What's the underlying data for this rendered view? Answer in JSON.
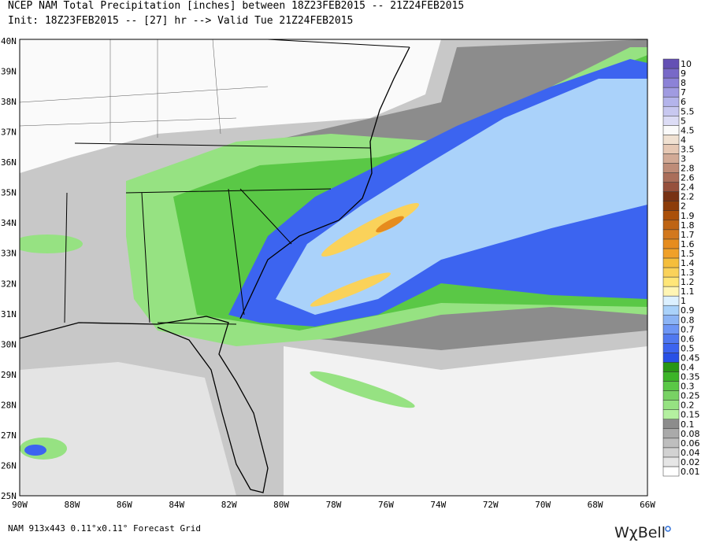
{
  "header": {
    "line1": "NCEP NAM Total Precipitation [inches] between 18Z23FEB2015 -- 21Z24FEB2015",
    "line2": "Init: 18Z23FEB2015 -- [27] hr --> Valid Tue 21Z24FEB2015"
  },
  "map": {
    "lat_labels": [
      "40N",
      "39N",
      "38N",
      "37N",
      "36N",
      "35N",
      "34N",
      "33N",
      "32N",
      "31N",
      "30N",
      "29N",
      "28N",
      "27N",
      "26N",
      "25N"
    ],
    "lon_labels": [
      "90W",
      "88W",
      "86W",
      "84W",
      "82W",
      "80W",
      "78W",
      "76W",
      "74W",
      "72W",
      "70W",
      "68W",
      "66W"
    ]
  },
  "colorbar": {
    "levels": [
      0.01,
      0.02,
      0.04,
      0.06,
      0.08,
      0.1,
      0.15,
      0.2,
      0.25,
      0.3,
      0.35,
      0.4,
      0.45,
      0.5,
      0.6,
      0.7,
      0.8,
      0.9,
      1,
      1.1,
      1.2,
      1.3,
      1.4,
      1.5,
      1.6,
      1.7,
      1.8,
      1.9,
      2,
      2.2,
      2.4,
      2.6,
      2.8,
      3,
      3.5,
      4,
      4.5,
      5,
      5.5,
      6,
      7,
      8,
      9,
      10
    ],
    "colors": [
      "#ffffff",
      "#e6e6e6",
      "#d2d2d2",
      "#bebebe",
      "#aaaaaa",
      "#8c8c8c",
      "#b4f0a0",
      "#96e282",
      "#78d264",
      "#5ac846",
      "#3cb428",
      "#289614",
      "#2850e6",
      "#3c64f0",
      "#5078f0",
      "#6e96f5",
      "#8cb4f5",
      "#aad2fa",
      "#dcf0ff",
      "#fff5b4",
      "#ffe678",
      "#fad25a",
      "#f5be3c",
      "#f0a028",
      "#e68c1e",
      "#d2781e",
      "#be6414",
      "#aa500a",
      "#8c3c0a",
      "#783214",
      "#96503c",
      "#aa6e5a",
      "#be8c78",
      "#d2aa96",
      "#e6c8b4",
      "#f0e1d2",
      "#fafafa",
      "#dcdcf5",
      "#c8c8f0",
      "#b4b4eb",
      "#a09be1",
      "#8c82d7",
      "#7869c8",
      "#6450b4"
    ]
  },
  "footer": {
    "grid": "NAM 913x443 0.11°x0.11° Forecast Grid",
    "brand": "WχBell"
  }
}
